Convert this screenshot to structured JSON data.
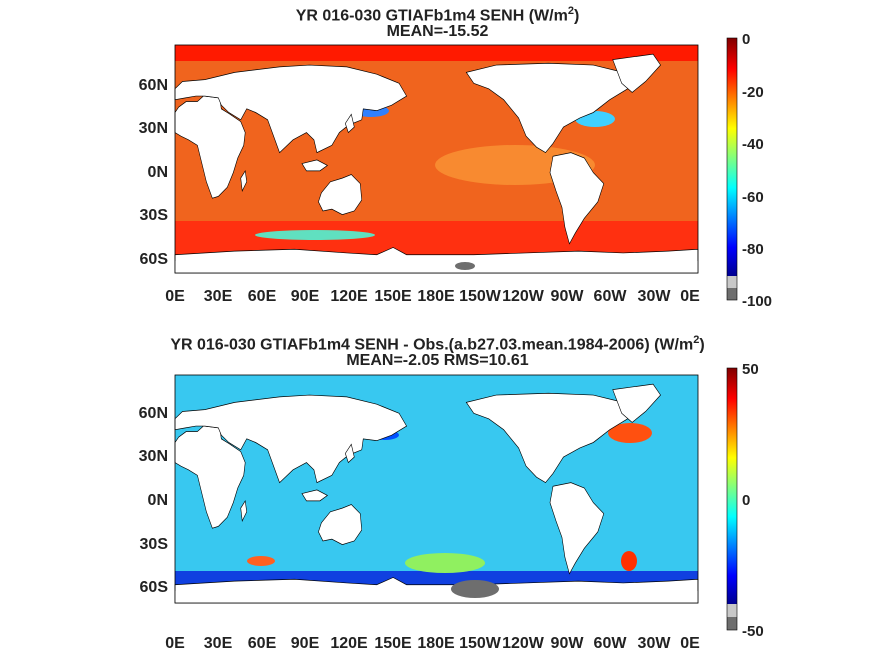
{
  "panels": [
    {
      "title_line1": "YR 016-030 GTIAFb1m4  SENH (W/m",
      "title_sup": "2",
      "title_close": ")",
      "title_line2": "MEAN=-15.52",
      "lat_labels": [
        "60N",
        "30N",
        "0N",
        "30S",
        "60S"
      ],
      "lon_labels": [
        "0E",
        "30E",
        "60E",
        "90E",
        "120E",
        "150E",
        "180E",
        "150W",
        "120W",
        "90W",
        "60W",
        "30W",
        "0E"
      ],
      "colorbar_labels": [
        "0",
        "-20",
        "-40",
        "-60",
        "-80",
        "-100"
      ],
      "colorbar_range": [
        -100,
        0
      ],
      "ocean_color": "#f0641e"
    },
    {
      "title_line1": "YR 016-030 GTIAFb1m4 SENH - Obs.(a.b27.03.mean.1984-2006) (W/m",
      "title_sup": "2",
      "title_close": ")",
      "title_line2": "MEAN=-2.05 RMS=10.61",
      "lat_labels": [
        "60N",
        "30N",
        "0N",
        "30S",
        "60S"
      ],
      "lon_labels": [
        "0E",
        "30E",
        "60E",
        "90E",
        "120E",
        "150E",
        "180E",
        "150W",
        "120W",
        "90W",
        "60W",
        "30W",
        "0E"
      ],
      "colorbar_labels": [
        "50",
        "0",
        "-50"
      ],
      "colorbar_range": [
        -50,
        50
      ],
      "ocean_color": "#38c8f0"
    }
  ],
  "colors": {
    "land": "#ffffff",
    "missing": "#6e6e6e",
    "coast": "#000000"
  }
}
